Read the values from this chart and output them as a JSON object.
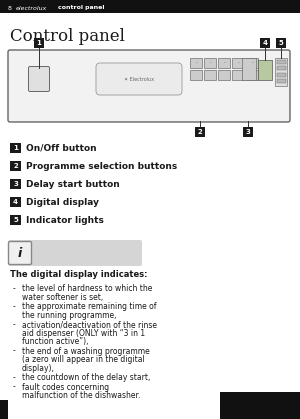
{
  "bg_color": "#ffffff",
  "header_text_num": "8",
  "header_text_brand": "electrolux",
  "header_text_section": "control panel",
  "title": "Control panel",
  "items": [
    {
      "num": "1",
      "text": "On/Off button"
    },
    {
      "num": "2",
      "text": "Programme selection buttons"
    },
    {
      "num": "3",
      "text": "Delay start button"
    },
    {
      "num": "4",
      "text": "Digital display"
    },
    {
      "num": "5",
      "text": "Indicator lights"
    }
  ],
  "info_title": "The digital display indicates:",
  "info_bullets": [
    [
      "the level of hardness to which the",
      "water softener is set,"
    ],
    [
      "the approximate remaining time of",
      "the running programme,"
    ],
    [
      "activation/deactivation of the rinse",
      "aid dispenser (ONLY with “3 in 1",
      "function active”),"
    ],
    [
      "the end of a washing programme",
      "(a zero will appear in the digital",
      "display),"
    ],
    [
      "the countdown of the delay start,"
    ],
    [
      "fault codes concerning",
      "malfunction of the dishwasher."
    ]
  ],
  "panel_color": "#f5f5f5",
  "panel_border": "#888888",
  "badge_color": "#1a1a1a",
  "text_color": "#1a1a1a",
  "info_bg_color": "#d8d8d8",
  "icon_border": "#888888"
}
